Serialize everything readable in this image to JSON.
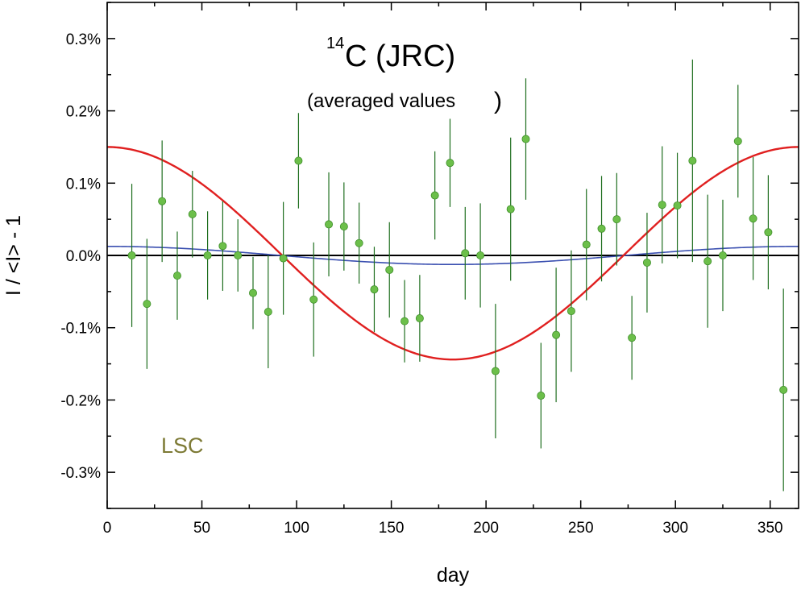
{
  "chart_data": {
    "type": "scatter",
    "title": {
      "superscript": "14",
      "main": "C (JRC)",
      "subtitle": "(averaged values",
      "subtitle_paren": ")"
    },
    "xlabel": "day",
    "ylabel": "I / <I> - 1",
    "xlim": [
      0,
      365
    ],
    "ylim": [
      -0.35,
      0.35
    ],
    "x_ticks": [
      0,
      50,
      100,
      150,
      200,
      250,
      300,
      350
    ],
    "x_tick_labels": [
      "0",
      "50",
      "100",
      "150",
      "200",
      "250",
      "300",
      "350"
    ],
    "y_ticks": [
      0.3,
      0.2,
      0.1,
      0.0,
      -0.1,
      -0.2,
      -0.3
    ],
    "y_tick_labels": [
      "0.3%",
      "0.2%",
      "0.1%",
      "0.0%",
      "-0.1%",
      "-0.2%",
      "-0.3%"
    ],
    "grid": false,
    "annotation": "LSC",
    "colors": {
      "points": "#6cbf4a",
      "point_edge": "#3f8f2a",
      "error_bars": "#1f6f1f",
      "red_curve": "#e02020",
      "blue_curve": "#3a4fb0",
      "zero_line": "#000000",
      "annotation": "#7d7a35"
    },
    "series": [
      {
        "name": "averaged values",
        "kind": "points_with_error_bars",
        "x": [
          13,
          21,
          29,
          37,
          45,
          53,
          61,
          69,
          77,
          85,
          93,
          101,
          109,
          117,
          125,
          133,
          141,
          149,
          157,
          165,
          173,
          181,
          189,
          197,
          205,
          213,
          221,
          229,
          237,
          245,
          253,
          261,
          269,
          277,
          285,
          293,
          301,
          309,
          317,
          325,
          333,
          341,
          349,
          357
        ],
        "y": [
          0.0,
          -0.067,
          0.075,
          -0.028,
          0.057,
          0.0,
          0.013,
          0.0,
          -0.052,
          -0.078,
          -0.004,
          0.131,
          -0.061,
          0.043,
          0.04,
          0.017,
          -0.047,
          -0.02,
          -0.091,
          -0.087,
          0.083,
          0.128,
          0.003,
          0.0,
          -0.16,
          0.064,
          0.161,
          -0.194,
          -0.11,
          -0.077,
          0.015,
          0.037,
          0.05,
          -0.114,
          -0.01,
          0.07,
          0.069,
          0.131,
          -0.008,
          0.0,
          0.158,
          0.051,
          0.032,
          -0.186
        ],
        "y_err": [
          0.099,
          0.09,
          0.084,
          0.061,
          0.06,
          0.061,
          0.062,
          0.05,
          0.05,
          0.078,
          0.078,
          0.066,
          0.079,
          0.072,
          0.061,
          0.056,
          0.059,
          0.066,
          0.057,
          0.06,
          0.061,
          0.061,
          0.064,
          0.072,
          0.093,
          0.099,
          0.084,
          0.073,
          0.093,
          0.084,
          0.077,
          0.073,
          0.064,
          0.058,
          0.069,
          0.081,
          0.073,
          0.14,
          0.092,
          0.077,
          0.078,
          0.085,
          0.079,
          0.14
        ]
      },
      {
        "name": "red fit",
        "kind": "cosine",
        "amplitude": 0.147,
        "phase_day": 0,
        "offset": 0.003,
        "period": 365
      },
      {
        "name": "blue fit",
        "kind": "cosine",
        "amplitude": 0.0125,
        "phase_day": 0,
        "offset": 0,
        "period": 365
      }
    ]
  }
}
